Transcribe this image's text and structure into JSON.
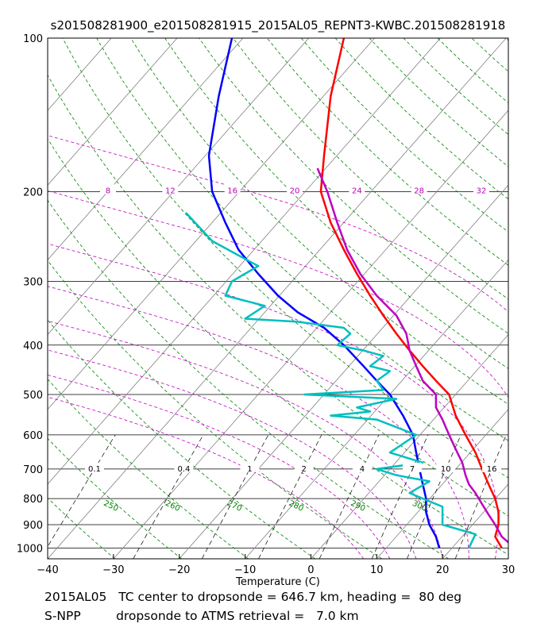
{
  "chart_data": {
    "type": "line",
    "title": "s201508281900_e201508281915_2015AL05_REPNT3-KWBC.201508281918",
    "xlabel": "Temperature (C)",
    "ylabel": "",
    "xlim": [
      -40,
      30
    ],
    "ylim": [
      1050,
      100
    ],
    "x_ticks": [
      "−40",
      "−30",
      "−20",
      "−10",
      "0",
      "10",
      "20",
      "30"
    ],
    "x_tick_values": [
      -40,
      -30,
      -20,
      -10,
      0,
      10,
      20,
      30
    ],
    "y_ticks": [
      "100",
      "200",
      "300",
      "400",
      "500",
      "600",
      "700",
      "800",
      "900",
      "1000"
    ],
    "y_tick_values": [
      100,
      200,
      300,
      400,
      500,
      600,
      700,
      800,
      900,
      1000
    ],
    "mixing_ratio_labels": [
      "0.1",
      "0.4",
      "1",
      "2",
      "4",
      "7",
      "10",
      "16"
    ],
    "mixing_ratio_values": [
      0.1,
      0.4,
      1,
      2,
      4,
      7,
      10,
      16
    ],
    "dry_adiabat_labels": [
      "250",
      "260",
      "270",
      "280",
      "290",
      "300"
    ],
    "moist_adiabat_labels": [
      "8",
      "12",
      "16",
      "20",
      "24",
      "28",
      "32"
    ],
    "colors": {
      "temperature": "#ff0000",
      "dewpoint_profile": "#0000ff",
      "retrieval_dewpoint": "#00bfbf",
      "retrieval_temperature": "#bf00bf",
      "dry_adiabat": "#008000",
      "moist_adiabat": "#bf00bf",
      "isotherm": "#808080",
      "mixing_ratio": "#000000"
    },
    "series": [
      {
        "name": "temperature",
        "points": [
          [
            5,
            100
          ],
          [
            3,
            130
          ],
          [
            2,
            170
          ],
          [
            1.5,
            200
          ],
          [
            3,
            230
          ],
          [
            5,
            260
          ],
          [
            7,
            290
          ],
          [
            9,
            320
          ],
          [
            11,
            350
          ],
          [
            13,
            380
          ],
          [
            15,
            410
          ],
          [
            17,
            440
          ],
          [
            19,
            470
          ],
          [
            21,
            500
          ],
          [
            22,
            550
          ],
          [
            23.5,
            600
          ],
          [
            25,
            650
          ],
          [
            26,
            700
          ],
          [
            27,
            750
          ],
          [
            28,
            800
          ],
          [
            28.5,
            850
          ],
          [
            28.5,
            900
          ],
          [
            28,
            950
          ],
          [
            29,
            1000
          ]
        ]
      },
      {
        "name": "dewpoint_profile",
        "points": [
          [
            -12,
            100
          ],
          [
            -14,
            130
          ],
          [
            -15.5,
            170
          ],
          [
            -15,
            200
          ],
          [
            -13,
            230
          ],
          [
            -11,
            260
          ],
          [
            -8,
            290
          ],
          [
            -5,
            320
          ],
          [
            -2,
            345
          ],
          [
            2,
            370
          ],
          [
            5,
            400
          ],
          [
            8,
            440
          ],
          [
            10,
            470
          ],
          [
            12,
            500
          ],
          [
            14,
            550
          ],
          [
            15.5,
            600
          ],
          [
            16,
            650
          ],
          [
            16.5,
            700
          ],
          [
            17,
            750
          ],
          [
            17.5,
            800
          ],
          [
            17.5,
            850
          ],
          [
            18,
            900
          ],
          [
            19,
            950
          ],
          [
            19.5,
            1000
          ]
        ]
      },
      {
        "name": "retrieval_dewpoint",
        "points": [
          [
            -19,
            220
          ],
          [
            -15,
            250
          ],
          [
            -8,
            280
          ],
          [
            -12,
            300
          ],
          [
            -13,
            320
          ],
          [
            -7,
            335
          ],
          [
            -10,
            355
          ],
          [
            -2,
            360
          ],
          [
            5,
            370
          ],
          [
            6,
            380
          ],
          [
            4,
            400
          ],
          [
            8,
            410
          ],
          [
            11,
            420
          ],
          [
            9,
            440
          ],
          [
            12,
            450
          ],
          [
            10,
            470
          ],
          [
            11,
            490
          ],
          [
            -1,
            500
          ],
          [
            13,
            510
          ],
          [
            7,
            530
          ],
          [
            9,
            540
          ],
          [
            3,
            550
          ],
          [
            10,
            560
          ],
          [
            16,
            600
          ],
          [
            12,
            650
          ],
          [
            17,
            680
          ],
          [
            10,
            700
          ],
          [
            13,
            720
          ],
          [
            18,
            740
          ],
          [
            15,
            780
          ],
          [
            17,
            800
          ],
          [
            20,
            830
          ],
          [
            20,
            900
          ],
          [
            25,
            940
          ],
          [
            24,
            1000
          ]
        ]
      },
      {
        "name": "retrieval_temperature",
        "points": [
          [
            1,
            180
          ],
          [
            2.5,
            200
          ],
          [
            4,
            230
          ],
          [
            5.5,
            260
          ],
          [
            7.5,
            290
          ],
          [
            10,
            320
          ],
          [
            13,
            350
          ],
          [
            14.5,
            380
          ],
          [
            15,
            410
          ],
          [
            16,
            440
          ],
          [
            17,
            470
          ],
          [
            19,
            500
          ],
          [
            19,
            530
          ],
          [
            20,
            560
          ],
          [
            21,
            600
          ],
          [
            22,
            640
          ],
          [
            23,
            680
          ],
          [
            23.5,
            720
          ],
          [
            24,
            750
          ],
          [
            25,
            780
          ],
          [
            26,
            820
          ],
          [
            27,
            860
          ],
          [
            28,
            900
          ],
          [
            29,
            950
          ],
          [
            31,
            1000
          ]
        ]
      }
    ]
  }
}
